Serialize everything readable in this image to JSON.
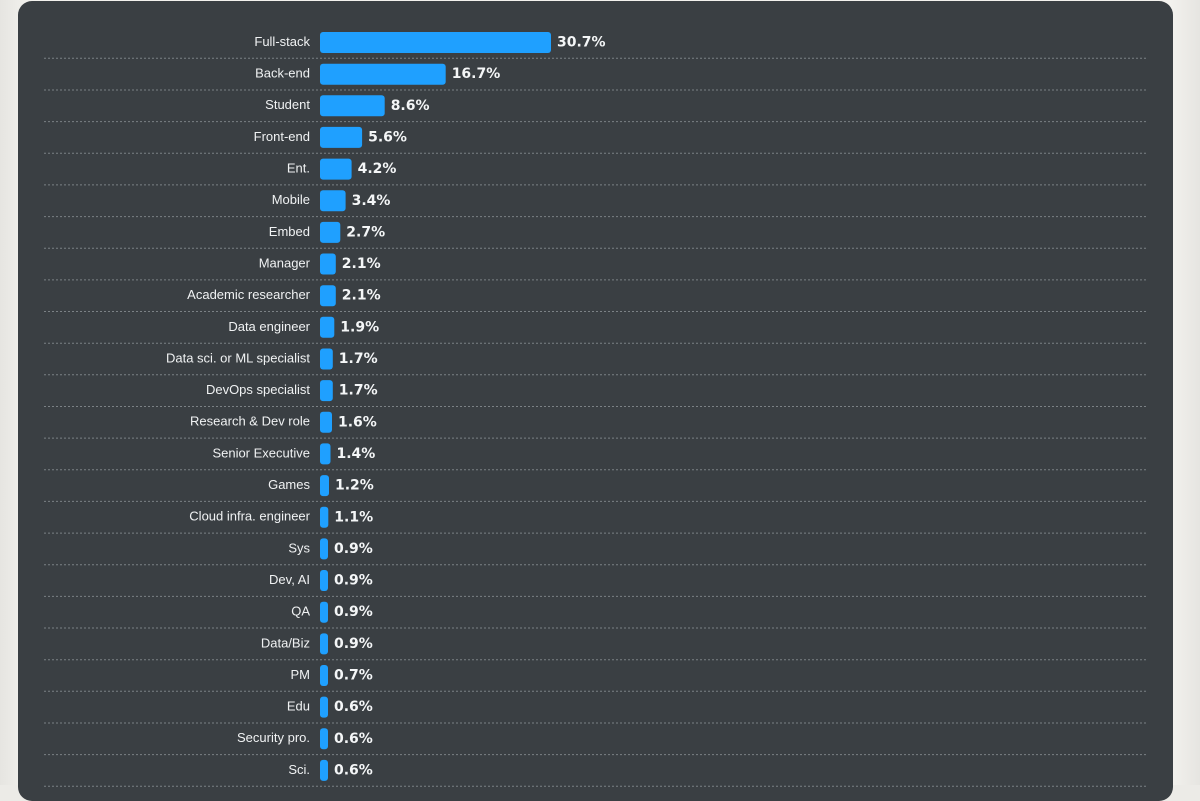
{
  "chart_data": {
    "type": "bar",
    "orientation": "horizontal",
    "categories": [
      "Full-stack",
      "Back-end",
      "Student",
      "Front-end",
      "Ent.",
      "Mobile",
      "Embed",
      "Manager",
      "Academic researcher",
      "Data engineer",
      "Data sci. or ML specialist",
      "DevOps specialist",
      "Research & Dev role",
      "Senior Executive",
      "Games",
      "Cloud infra. engineer",
      "Sys",
      "Dev, AI",
      "QA",
      "Data/Biz",
      "PM",
      "Edu",
      "Security pro.",
      "Sci."
    ],
    "values": [
      30.7,
      16.7,
      8.6,
      5.6,
      4.2,
      3.4,
      2.7,
      2.1,
      2.1,
      1.9,
      1.7,
      1.7,
      1.6,
      1.4,
      1.2,
      1.1,
      0.9,
      0.9,
      0.9,
      0.9,
      0.7,
      0.6,
      0.6,
      0.6
    ],
    "value_labels": [
      "30.7%",
      "16.7%",
      "8.6%",
      "5.6%",
      "4.2%",
      "3.4%",
      "2.7%",
      "2.1%",
      "2.1%",
      "1.9%",
      "1.7%",
      "1.7%",
      "1.6%",
      "1.4%",
      "1.2%",
      "1.1%",
      "0.9%",
      "0.9%",
      "0.9%",
      "0.9%",
      "0.7%",
      "0.6%",
      "0.6%",
      "0.6%"
    ],
    "unit": "%",
    "title": "",
    "xlabel": "",
    "ylabel": "",
    "xlim": [
      0,
      30.7
    ],
    "grid": "horizontal dashed separators",
    "legend": "none"
  },
  "colors": {
    "bar": "#1fa0ff",
    "card_background": "#3a3f43",
    "text": "#f0f2f3",
    "separator": "#7b8185"
  }
}
